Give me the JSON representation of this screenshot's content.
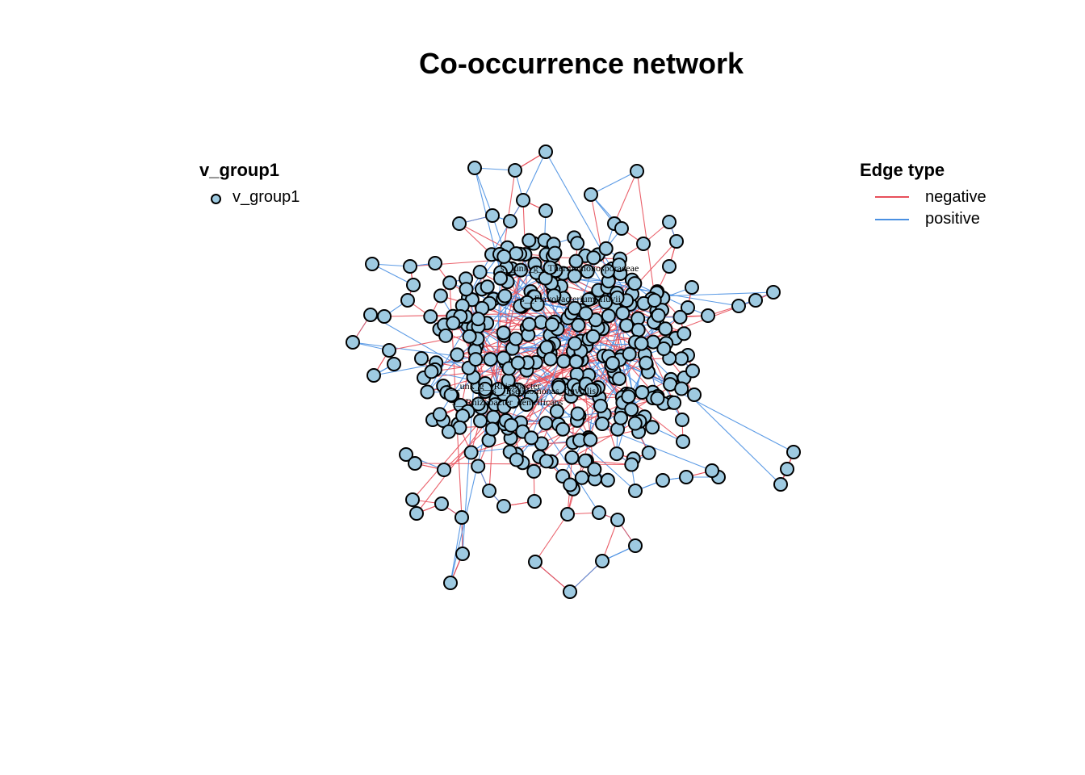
{
  "title": "Co-occurrence network",
  "colors": {
    "node_fill": "#9ecae1",
    "node_stroke": "#000000",
    "negative": "#e8505b",
    "positive": "#4a90e2"
  },
  "legend_nodes": {
    "title": "v_group1",
    "items": [
      {
        "label": "v_group1",
        "color": "#9ecae1"
      }
    ]
  },
  "legend_edges": {
    "title": "Edge type",
    "items": [
      {
        "label": "negative",
        "color": "#e8505b"
      },
      {
        "label": "positive",
        "color": "#4a90e2"
      }
    ]
  },
  "node_labels": [
    "s__unk_g__Thermomonosporaceae",
    "s__Flavobacterium_fluvii",
    "s__unk_g__Rhizobacter",
    "s__Pseudomonas_fluvialis",
    "s__Rhizobacter_dentrificans"
  ]
}
